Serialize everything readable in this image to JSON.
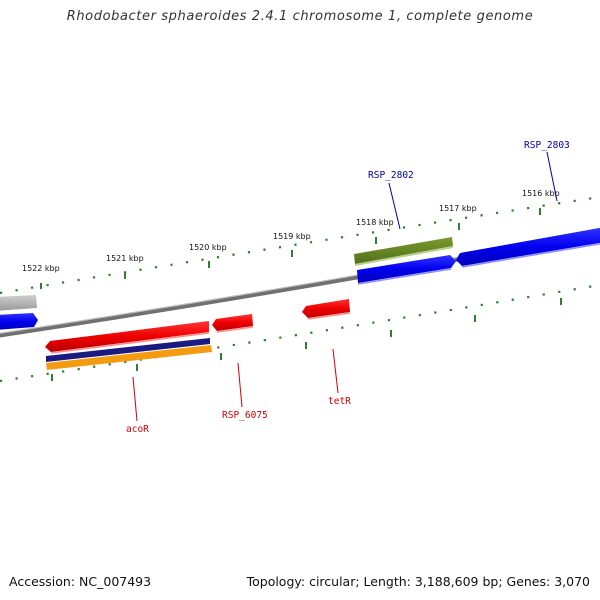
{
  "header": {
    "title": "Rhodobacter sphaeroides 2.4.1 chromosome 1, complete genome"
  },
  "footer": {
    "accession_label": "Accession: ",
    "accession": "NC_007493",
    "topology_label": "Topology: ",
    "topology": "circular",
    "length_label": "; Length: ",
    "length": "3,188,609 bp",
    "genes_label": "; Genes: ",
    "genes": "3,070"
  },
  "ticks": [
    "1522 kbp",
    "1521 kbp",
    "1520 kbp",
    "1519 kbp",
    "1518 kbp",
    "1517 kbp",
    "1516 kbp"
  ],
  "gene_labels": {
    "forward": [
      "RSP_2802",
      "RSP_2803"
    ],
    "reverse": [
      "acoR",
      "RSP_6075",
      "tetR"
    ]
  },
  "colors": {
    "forward_label": "#0000aa",
    "reverse_label": "#cc0000",
    "tick_marks": "#2e7d32",
    "backbone": "#808080"
  }
}
